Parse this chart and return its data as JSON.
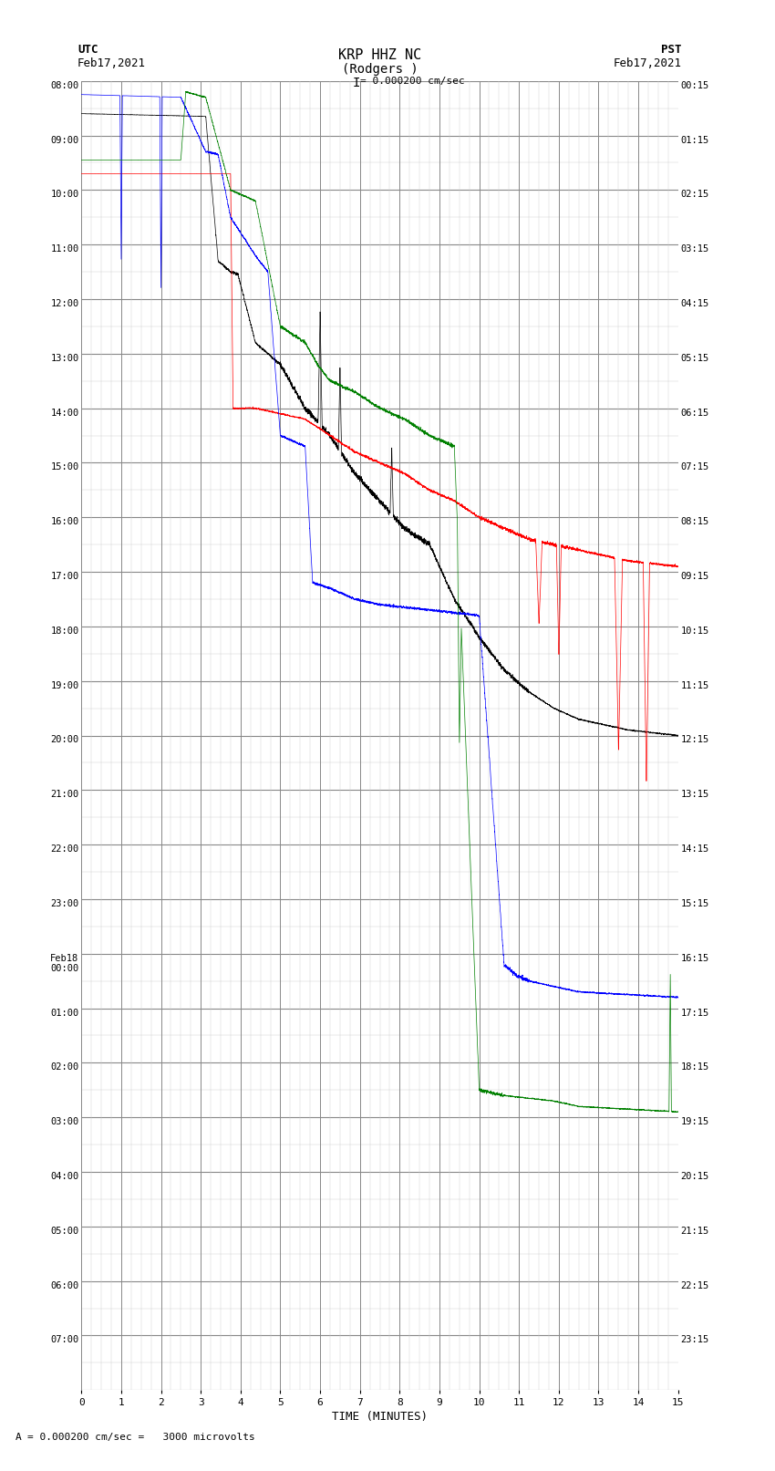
{
  "title_line1": "KRP HHZ NC",
  "title_line2": "(Rodgers )",
  "scale_text": "I = 0.000200 cm/sec",
  "bottom_scale_text": "= 0.000200 cm/sec =   3000 microvolts",
  "utc_label": "UTC",
  "utc_date": "Feb17,2021",
  "pst_label": "PST",
  "pst_date": "Feb17,2021",
  "xlabel": "TIME (MINUTES)",
  "xlim": [
    0,
    15
  ],
  "num_rows": 24,
  "background_color": "#ffffff",
  "grid_color_major": "#888888",
  "grid_color_minor": "#cccccc",
  "fig_width": 8.5,
  "fig_height": 16.13,
  "utc_times": [
    "08:00",
    "09:00",
    "10:00",
    "11:00",
    "12:00",
    "13:00",
    "14:00",
    "15:00",
    "16:00",
    "17:00",
    "18:00",
    "19:00",
    "20:00",
    "21:00",
    "22:00",
    "23:00",
    "Feb18\n00:00",
    "01:00",
    "02:00",
    "03:00",
    "04:00",
    "05:00",
    "06:00",
    "07:00"
  ],
  "pst_times": [
    "00:15",
    "01:15",
    "02:15",
    "03:15",
    "04:15",
    "05:15",
    "06:15",
    "07:15",
    "08:15",
    "09:15",
    "10:15",
    "11:15",
    "12:15",
    "13:15",
    "14:15",
    "15:15",
    "16:15",
    "17:15",
    "18:15",
    "19:15",
    "20:15",
    "21:15",
    "22:15",
    "23:15"
  ]
}
